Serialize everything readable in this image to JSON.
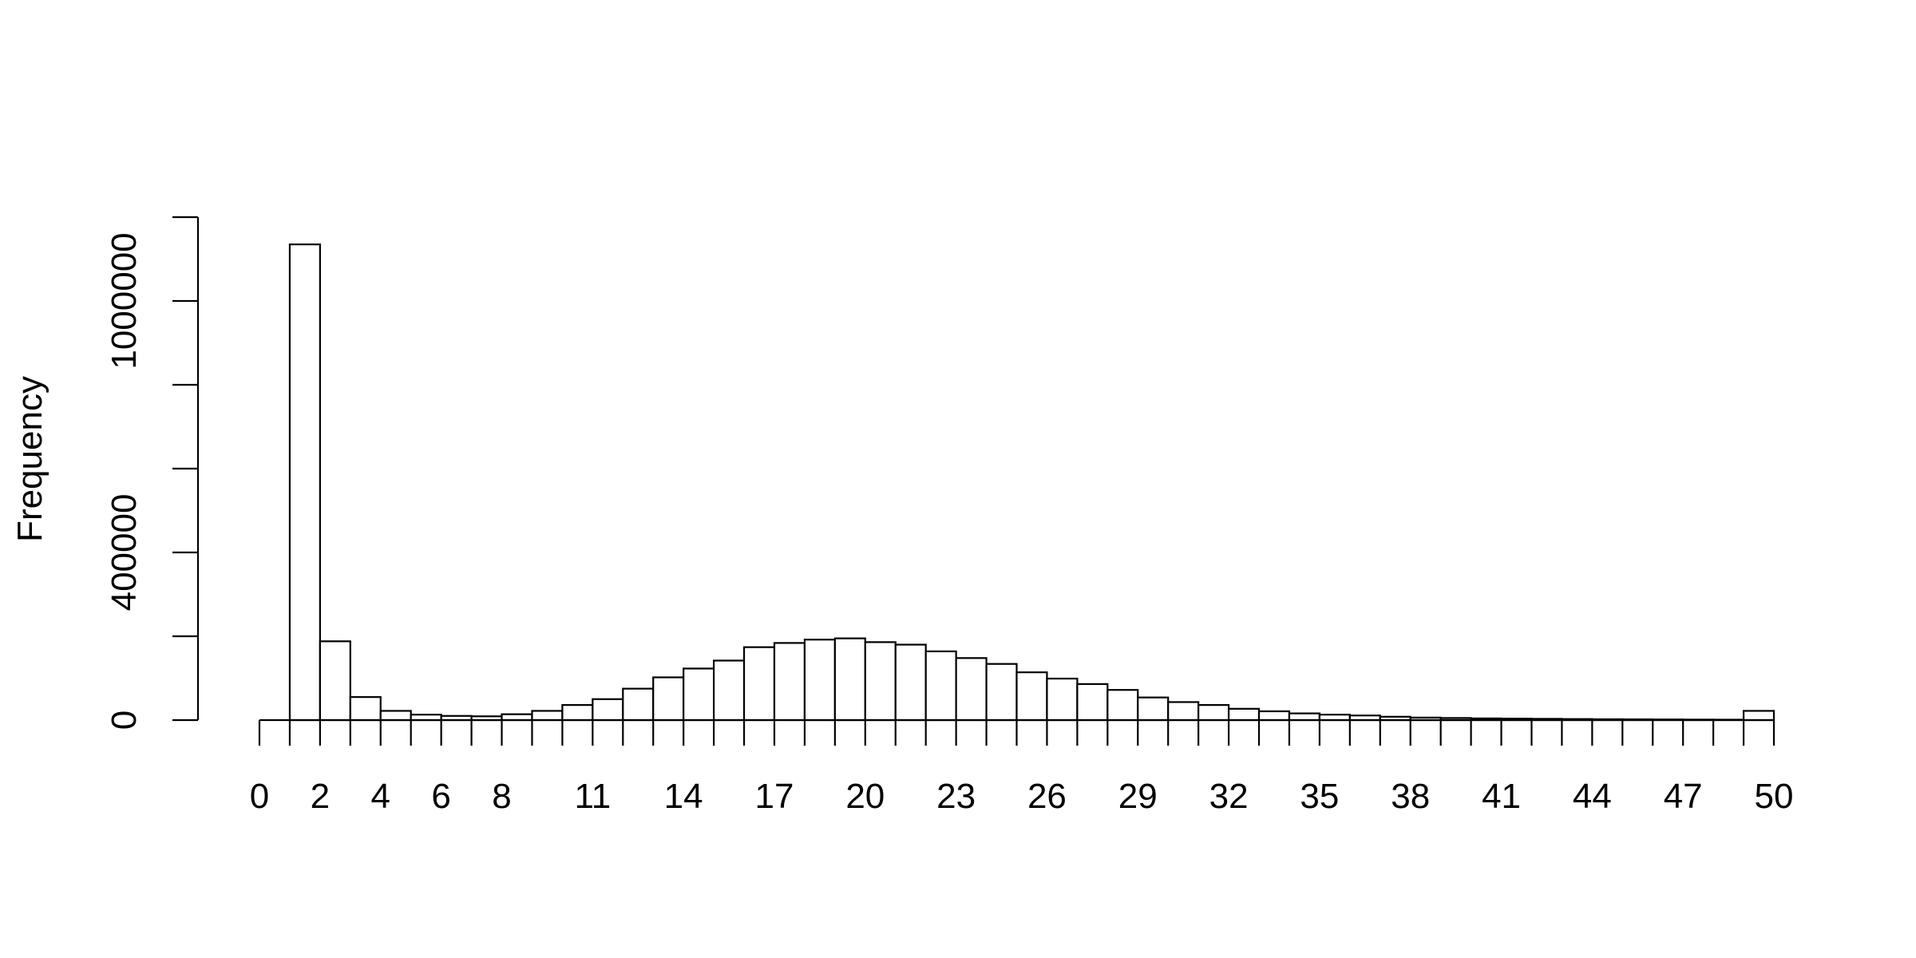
{
  "chart_data": {
    "type": "bar",
    "title": "",
    "xlabel": "",
    "ylabel": "Frequency",
    "bin_edges_start": 0,
    "bin_width": 1,
    "values": [
      0,
      1135000,
      188000,
      55000,
      22000,
      13000,
      10000,
      9000,
      14000,
      22000,
      36000,
      50000,
      75000,
      102000,
      123000,
      142000,
      174000,
      184000,
      192000,
      195000,
      186000,
      180000,
      164000,
      148000,
      134000,
      114000,
      99000,
      86000,
      72000,
      54000,
      43000,
      36000,
      27000,
      21000,
      16000,
      13000,
      11000,
      8000,
      6000,
      5000,
      4000,
      3500,
      3000,
      2500,
      2000,
      1800,
      1500,
      1200,
      1000,
      22000
    ],
    "xlim": [
      0,
      50
    ],
    "ylim": [
      0,
      1200000
    ],
    "x_ticks": [
      0,
      1,
      2,
      3,
      4,
      5,
      6,
      7,
      8,
      9,
      10,
      11,
      12,
      13,
      14,
      15,
      16,
      17,
      18,
      19,
      20,
      21,
      22,
      23,
      24,
      25,
      26,
      27,
      28,
      29,
      30,
      31,
      32,
      33,
      34,
      35,
      36,
      37,
      38,
      39,
      40,
      41,
      42,
      43,
      44,
      45,
      46,
      47,
      48,
      49,
      50
    ],
    "x_tick_labels": [
      "0",
      "",
      "2",
      "",
      "4",
      "",
      "6",
      "",
      "8",
      "",
      "",
      "11",
      "",
      "",
      "14",
      "",
      "",
      "17",
      "",
      "",
      "20",
      "",
      "",
      "23",
      "",
      "",
      "26",
      "",
      "",
      "29",
      "",
      "",
      "32",
      "",
      "",
      "35",
      "",
      "",
      "38",
      "",
      "",
      "41",
      "",
      "",
      "44",
      "",
      "",
      "47",
      "",
      "",
      "50"
    ],
    "y_ticks": [
      0,
      200000,
      400000,
      600000,
      800000,
      1000000,
      1200000
    ],
    "y_tick_labels": [
      "0",
      "",
      "400000",
      "",
      "",
      "1000000",
      ""
    ]
  }
}
